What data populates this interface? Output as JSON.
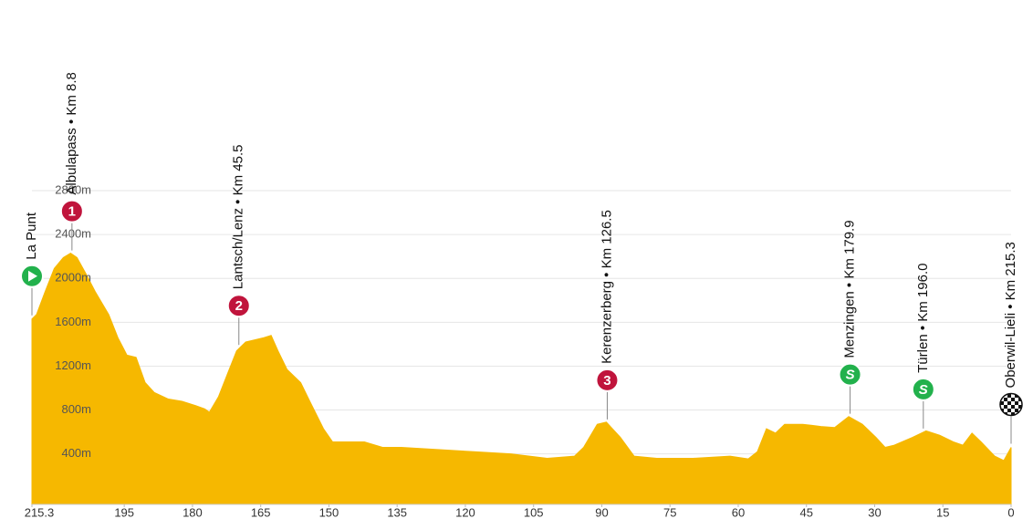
{
  "chart_data": {
    "type": "area",
    "color": "#f6b800",
    "grid": true,
    "xlim": [
      215.3,
      0
    ],
    "xticks": [
      215.3,
      195,
      180,
      165,
      150,
      135,
      120,
      105,
      90,
      75,
      60,
      45,
      30,
      15,
      0
    ],
    "ylim": [
      -60,
      2800
    ],
    "yticks": [
      {
        "value": 400,
        "label": "400m"
      },
      {
        "value": 800,
        "label": "800m"
      },
      {
        "value": 1200,
        "label": "1200m"
      },
      {
        "value": 1600,
        "label": "1600m"
      },
      {
        "value": 2000,
        "label": "2000m"
      },
      {
        "value": 2400,
        "label": "2400m"
      },
      {
        "value": 2800,
        "label": "2800m"
      }
    ],
    "x": [
      215.3,
      214.3,
      212.4,
      210.4,
      208.4,
      206.8,
      205.4,
      203.4,
      201.4,
      198.4,
      196.4,
      194.4,
      192.4,
      190.4,
      188.4,
      185.3,
      182.3,
      179.3,
      177.3,
      176.3,
      174.3,
      172.3,
      170.3,
      168.3,
      166.3,
      164.3,
      162.7,
      161.2,
      159.2,
      156.2,
      154.2,
      151.2,
      149.2,
      146.2,
      142.2,
      138.2,
      134.1,
      126.1,
      118.1,
      110.0,
      102.0,
      96.0,
      94.0,
      91.0,
      89.0,
      85.9,
      82.9,
      77.9,
      69.9,
      61.8,
      57.8,
      55.8,
      53.8,
      51.8,
      49.8,
      45.8,
      41.8,
      38.8,
      35.7,
      32.7,
      29.7,
      27.7,
      25.7,
      21.7,
      18.7,
      15.7,
      12.7,
      10.6,
      8.6,
      6.6,
      3.6,
      1.6,
      0
    ],
    "values": [
      1630,
      1670,
      1880,
      2090,
      2190,
      2230,
      2190,
      2040,
      1880,
      1670,
      1460,
      1300,
      1280,
      1050,
      960,
      900,
      880,
      840,
      810,
      780,
      920,
      1130,
      1340,
      1420,
      1440,
      1460,
      1480,
      1340,
      1170,
      1050,
      880,
      630,
      510,
      510,
      510,
      460,
      460,
      440,
      420,
      400,
      360,
      380,
      460,
      670,
      690,
      550,
      380,
      360,
      360,
      380,
      355,
      420,
      630,
      590,
      670,
      670,
      650,
      640,
      740,
      670,
      550,
      460,
      480,
      550,
      610,
      570,
      510,
      480,
      590,
      510,
      380,
      340,
      460
    ],
    "waypoints": [
      {
        "label": "La Punt",
        "kind": "start",
        "x": 215.3,
        "color": "#22b14c"
      },
      {
        "label": "Albulapass • Km 8.8",
        "kind": "climb",
        "badge": "1",
        "x": 206.5,
        "color": "#c0143c"
      },
      {
        "label": "Lantsch/Lenz • Km 45.5",
        "kind": "climb",
        "badge": "2",
        "x": 169.8,
        "color": "#c0143c"
      },
      {
        "label": "Kerenzerberg • Km 126.5",
        "kind": "climb",
        "badge": "3",
        "x": 88.8,
        "color": "#c0143c"
      },
      {
        "label": "Menzingen • Km 179.9",
        "kind": "sprint",
        "badge": "S",
        "x": 35.4,
        "color": "#22b14c"
      },
      {
        "label": "Türlen • Km 196.0",
        "kind": "sprint",
        "badge": "S",
        "x": 19.3,
        "color": "#22b14c"
      },
      {
        "label": "Oberwil-Lieli • Km 215.3",
        "kind": "finish",
        "x": 0,
        "color": "#111111"
      }
    ]
  }
}
